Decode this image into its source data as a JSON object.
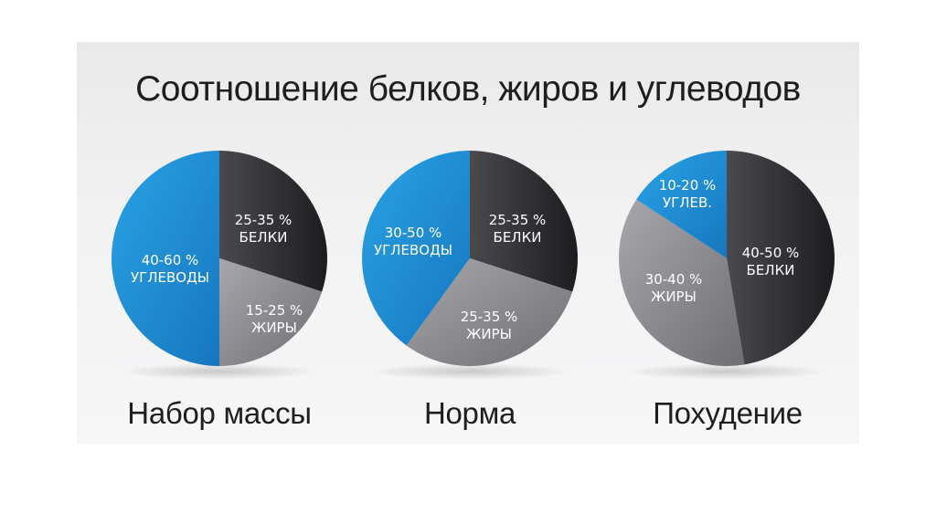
{
  "title": "Соотношение белков, жиров и углеводов",
  "colors": {
    "protein": "#2a2a2d",
    "fat": "#8e8e92",
    "carbs": "#1c8fd6"
  },
  "chart_data": [
    {
      "type": "pie",
      "caption": "Набор массы",
      "slices": [
        {
          "key": "protein",
          "range_text": "25-35 %",
          "name": "БЕЛКИ",
          "value": 30
        },
        {
          "key": "fat",
          "range_text": "15-25 %",
          "name": "ЖИРЫ",
          "value": 20
        },
        {
          "key": "carbs",
          "range_text": "40-60 %",
          "name": "УГЛЕВОДЫ",
          "value": 50
        }
      ]
    },
    {
      "type": "pie",
      "caption": "Норма",
      "slices": [
        {
          "key": "protein",
          "range_text": "25-35 %",
          "name": "БЕЛКИ",
          "value": 30
        },
        {
          "key": "fat",
          "range_text": "25-35 %",
          "name": "ЖИРЫ",
          "value": 30
        },
        {
          "key": "carbs",
          "range_text": "30-50 %",
          "name": "УГЛЕВОДЫ",
          "value": 40
        }
      ]
    },
    {
      "type": "pie",
      "caption": "Похудение",
      "slices": [
        {
          "key": "protein",
          "range_text": "40-50 %",
          "name": "БЕЛКИ",
          "value": 45
        },
        {
          "key": "fat",
          "range_text": "30-40 %",
          "name": "ЖИРЫ",
          "value": 35
        },
        {
          "key": "carbs",
          "range_text": "10-20 %",
          "name": "УГЛЕВ.",
          "value": 15
        }
      ]
    }
  ]
}
